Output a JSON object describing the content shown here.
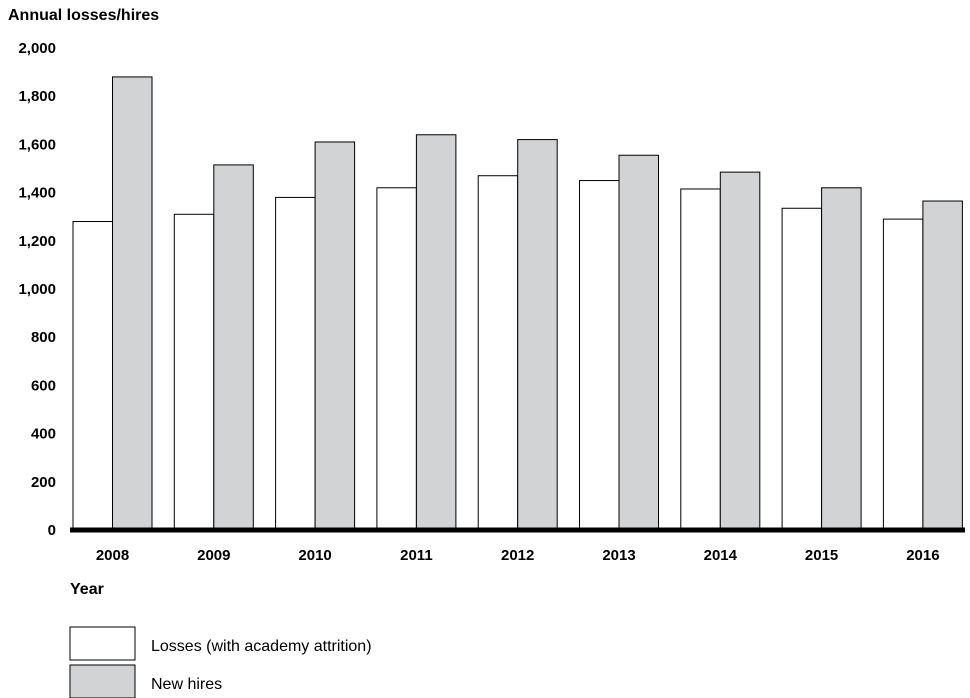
{
  "chart_data": {
    "type": "bar",
    "ylabel": "Annual losses/hires",
    "xlabel": "Year",
    "categories": [
      "2008",
      "2009",
      "2010",
      "2011",
      "2012",
      "2013",
      "2014",
      "2015",
      "2016"
    ],
    "series": [
      {
        "name": "Losses (with academy attrition)",
        "color": "#ffffff",
        "values": [
          1280,
          1310,
          1380,
          1420,
          1470,
          1450,
          1415,
          1335,
          1290
        ]
      },
      {
        "name": "New hires",
        "color": "#d1d3d4",
        "values": [
          1880,
          1515,
          1610,
          1640,
          1620,
          1555,
          1485,
          1420,
          1365
        ]
      }
    ],
    "ylim": [
      0,
      2000
    ],
    "yticks": [
      "0",
      "200",
      "400",
      "600",
      "800",
      "1,000",
      "1,200",
      "1,400",
      "1,600",
      "1,800",
      "2,000"
    ],
    "grid": false,
    "legend_position": "bottom-left"
  }
}
